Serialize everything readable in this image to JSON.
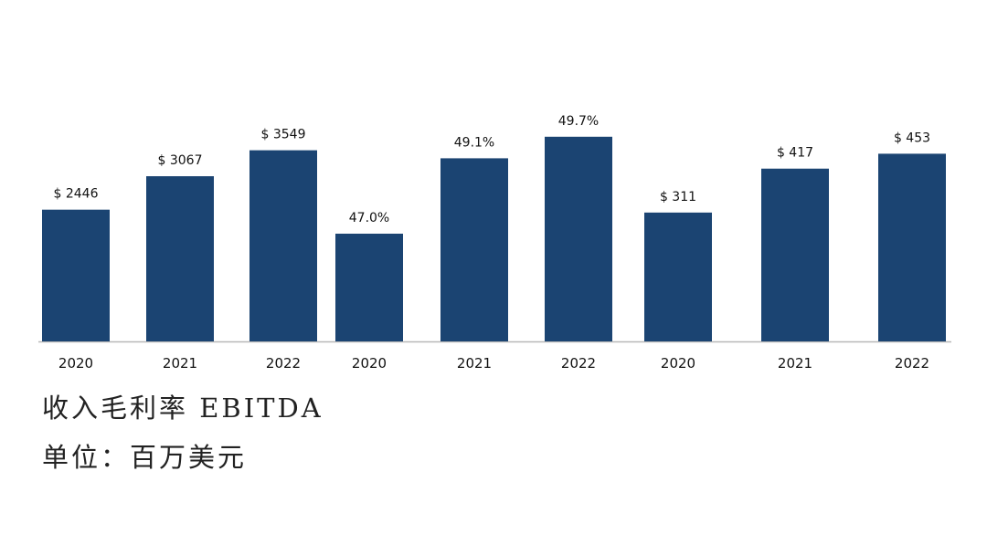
{
  "colors": {
    "bar": "#1b4472",
    "axis": "#b8b8b8"
  },
  "chart_data": {
    "type": "bar",
    "title": "",
    "xlabel": "",
    "ylabel": "",
    "grid": false,
    "legend": "none",
    "groups": [
      {
        "name": "收入",
        "unit_prefix": "$",
        "unit_suffix": "",
        "categories": [
          "2020",
          "2021",
          "2022"
        ],
        "values": [
          2446,
          3067,
          3549
        ],
        "labels": [
          "$ 2446",
          "$ 3067",
          "$ 3549"
        ],
        "ylim": [
          0,
          4000
        ]
      },
      {
        "name": "毛利率",
        "unit_prefix": "",
        "unit_suffix": "%",
        "categories": [
          "2020",
          "2021",
          "2022"
        ],
        "values": [
          47.0,
          49.1,
          49.7
        ],
        "labels": [
          "47.0%",
          "49.1%",
          "49.7%"
        ],
        "ylim": [
          44.0,
          50.0
        ]
      },
      {
        "name": "EBITDA",
        "unit_prefix": "$",
        "unit_suffix": "",
        "categories": [
          "2020",
          "2021",
          "2022"
        ],
        "values": [
          311,
          417,
          453
        ],
        "labels": [
          "$ 311",
          "$ 417",
          "$ 453"
        ],
        "ylim": [
          0,
          520
        ]
      }
    ]
  },
  "captions": {
    "line1": "收入毛利率 EBITDA",
    "line2": "单位：百万美元"
  }
}
